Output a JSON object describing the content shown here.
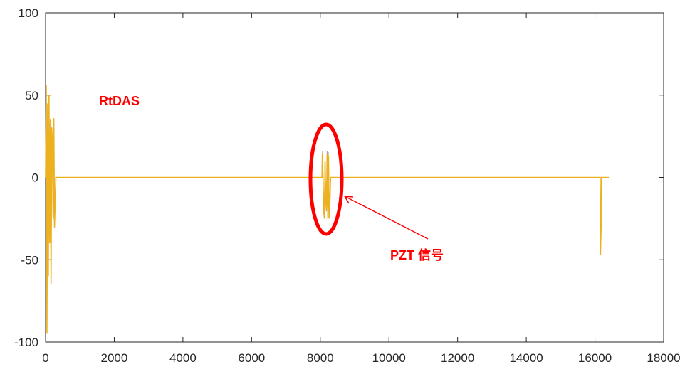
{
  "chart_data": {
    "type": "line",
    "title": "",
    "xlabel": "",
    "ylabel": "",
    "xlim": [
      0,
      18000
    ],
    "ylim": [
      -100,
      100
    ],
    "x_ticks": [
      0,
      2000,
      4000,
      6000,
      8000,
      10000,
      12000,
      14000,
      16000,
      18000
    ],
    "y_ticks": [
      100,
      50,
      0,
      -50,
      -100
    ],
    "grid": false,
    "legend": "none",
    "line_color": "#EDB120",
    "secondary_colors": [
      "#0072BD",
      "#D95319",
      "#7E2F8E",
      "#77AC30"
    ],
    "series": [
      {
        "x": [
          0,
          20,
          40,
          60,
          80,
          100,
          120,
          140,
          160,
          180,
          200,
          220,
          240,
          260,
          300,
          2000,
          4000,
          6000,
          7950,
          8050,
          8060,
          8080,
          8100,
          8120,
          8140,
          8160,
          8180,
          8200,
          8220,
          8240,
          8260,
          8280,
          8300,
          8320,
          8400,
          10000,
          12000,
          14000,
          16000,
          16150,
          16160,
          16180,
          16190,
          16200,
          16400
        ],
        "values": [
          0,
          56,
          -95,
          45,
          -60,
          50,
          -40,
          35,
          -65,
          30,
          20,
          -25,
          36,
          -30,
          0,
          0,
          0,
          0,
          0,
          0,
          14,
          0,
          -20,
          -25,
          10,
          -15,
          -20,
          14,
          -25,
          13,
          -25,
          -15,
          0,
          0,
          0,
          0,
          0,
          0,
          0,
          0,
          -47,
          -30,
          0,
          0,
          0
        ]
      }
    ],
    "annotations": [
      {
        "text": "RtDAS",
        "color": "#FF0000"
      },
      {
        "text": "PZT 信号",
        "color": "#FF0000"
      }
    ]
  }
}
